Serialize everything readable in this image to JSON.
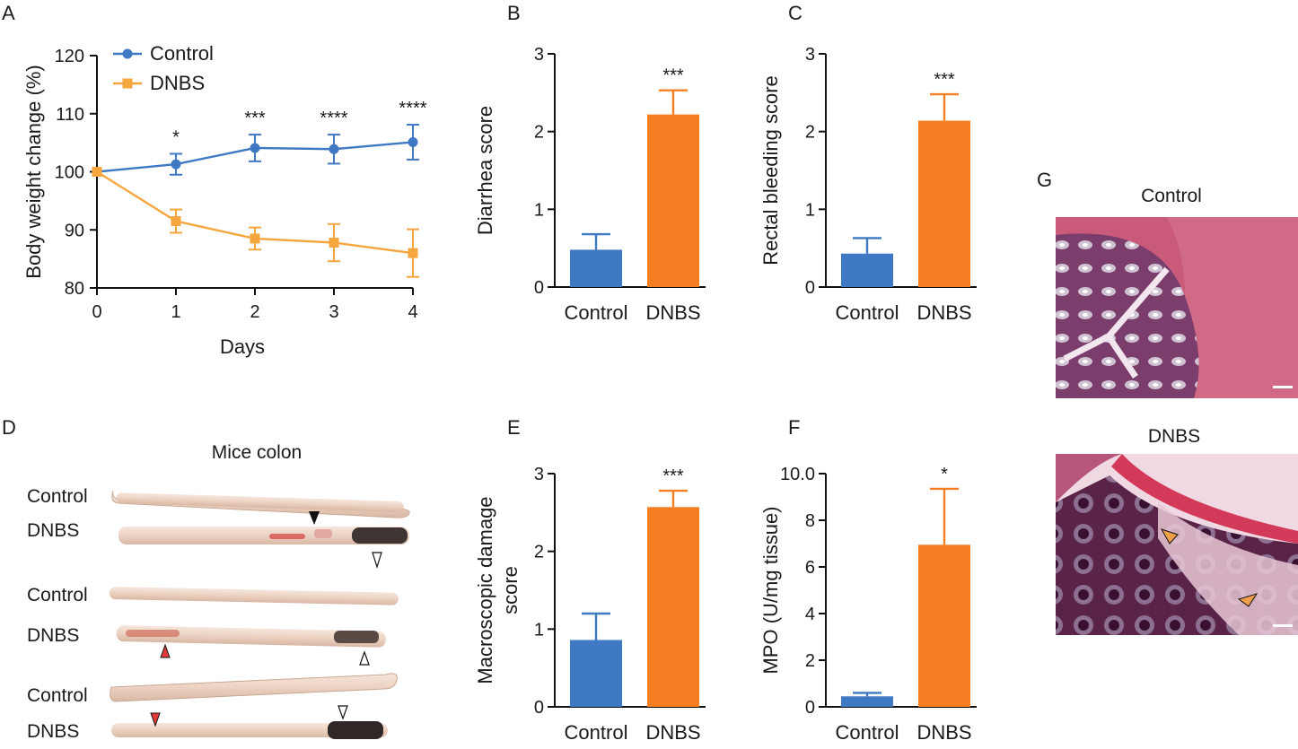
{
  "panels": {
    "A": "A",
    "B": "B",
    "C": "C",
    "D": "D",
    "E": "E",
    "F": "F",
    "G": "G"
  },
  "colors": {
    "control": "#3f78c3",
    "dnbs_line": "#f5a63d",
    "dnbs_bar": "#f57f22"
  },
  "chart_data": [
    {
      "id": "A",
      "type": "line",
      "xlabel": "Days",
      "ylabel": "Body weight change (%)",
      "x": [
        0,
        1,
        2,
        3,
        4
      ],
      "xlim": [
        0,
        4
      ],
      "ylim": [
        80,
        120
      ],
      "yticks": [
        80,
        90,
        100,
        110,
        120
      ],
      "legend": [
        "Control",
        "DNBS"
      ],
      "legend_position": "top-left",
      "series": [
        {
          "name": "Control",
          "marker": "circle",
          "values": [
            100,
            101.3,
            104.1,
            103.9,
            105.1
          ],
          "errors": [
            0,
            1.8,
            2.3,
            2.5,
            3.0
          ]
        },
        {
          "name": "DNBS",
          "marker": "square",
          "values": [
            100,
            91.5,
            88.5,
            87.8,
            86.0
          ],
          "errors": [
            0,
            2.0,
            1.9,
            3.2,
            4.1
          ]
        }
      ],
      "annotations": [
        {
          "x": 1,
          "text": "*"
        },
        {
          "x": 2,
          "text": "***"
        },
        {
          "x": 3,
          "text": "****"
        },
        {
          "x": 4,
          "text": "****"
        }
      ]
    },
    {
      "id": "B",
      "type": "bar",
      "categories": [
        "Control",
        "DNBS"
      ],
      "values": [
        0.48,
        2.22
      ],
      "errors": [
        0.2,
        0.31
      ],
      "ylabel": "Diarrhea score",
      "ylim": [
        0,
        3
      ],
      "yticks": [
        0,
        1,
        2,
        3
      ],
      "annotation": "***"
    },
    {
      "id": "C",
      "type": "bar",
      "categories": [
        "Control",
        "DNBS"
      ],
      "values": [
        0.43,
        2.14
      ],
      "errors": [
        0.2,
        0.34
      ],
      "ylabel": "Rectal bleeding score",
      "ylim": [
        0,
        3
      ],
      "yticks": [
        0,
        1,
        2,
        3
      ],
      "annotation": "***"
    },
    {
      "id": "E",
      "type": "bar",
      "categories": [
        "Control",
        "DNBS"
      ],
      "values": [
        0.86,
        2.57
      ],
      "errors": [
        0.34,
        0.21
      ],
      "ylabel": "Macroscopic damage score",
      "ylim": [
        0,
        3
      ],
      "yticks": [
        0,
        1,
        2,
        3
      ],
      "annotation": "***"
    },
    {
      "id": "F",
      "type": "bar",
      "categories": [
        "Control",
        "DNBS"
      ],
      "values": [
        0.45,
        6.95
      ],
      "errors": [
        0.15,
        2.4
      ],
      "ylabel": "MPO (U/mg tissue)",
      "ylim": [
        0,
        10
      ],
      "yticks": [
        0,
        2,
        4,
        6,
        8,
        "10.0"
      ],
      "annotation": "*"
    }
  ],
  "colon": {
    "title": "Mice colon",
    "rows": [
      "Control",
      "DNBS",
      "Control",
      "DNBS",
      "Control",
      "DNBS"
    ]
  },
  "histology": {
    "control_label": "Control",
    "dnbs_label": "DNBS"
  }
}
